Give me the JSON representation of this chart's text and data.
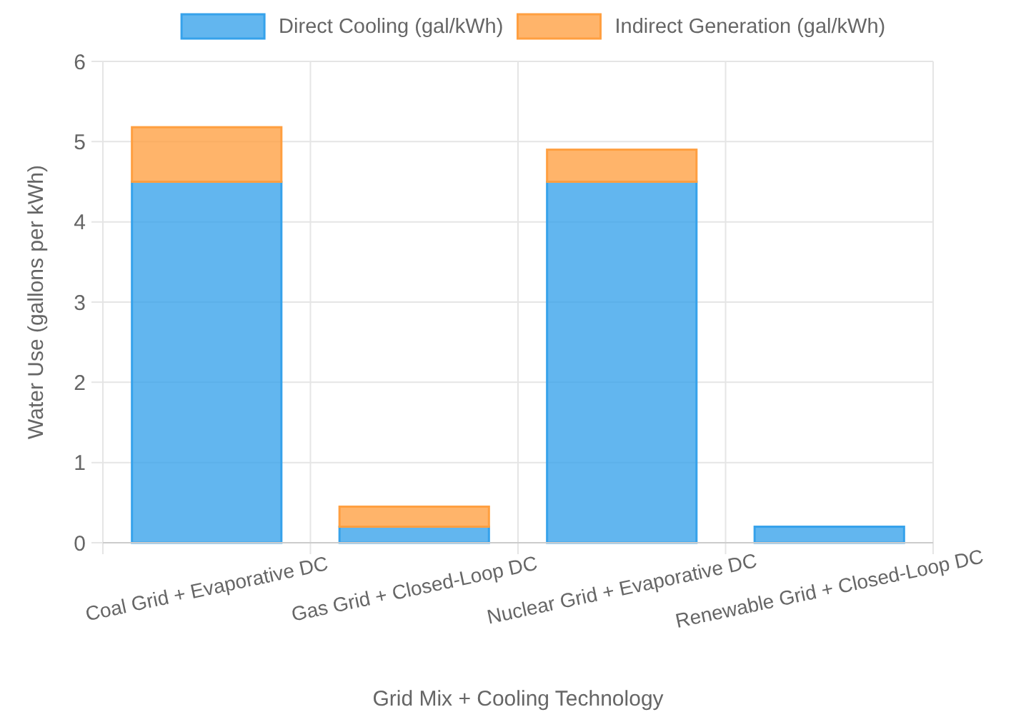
{
  "chart_data": {
    "type": "bar",
    "stacked": true,
    "xlabel": "Grid Mix + Cooling Technology",
    "ylabel": "Water Use (gallons per kWh)",
    "categories": [
      "Coal Grid + Evaporative DC",
      "Gas Grid + Closed-Loop DC",
      "Nuclear Grid + Evaporative DC",
      "Renewable Grid + Closed-Loop DC"
    ],
    "series": [
      {
        "name": "Direct Cooling (gal/kWh)",
        "color": "#36a2eb",
        "values": [
          4.5,
          0.2,
          4.5,
          0.2
        ]
      },
      {
        "name": "Indirect Generation (gal/kWh)",
        "color": "#ff9f40",
        "values": [
          0.68,
          0.25,
          0.4,
          0
        ]
      }
    ],
    "ylim": [
      0,
      6
    ],
    "yticks": [
      0,
      1,
      2,
      3,
      4,
      5,
      6
    ],
    "grid": true,
    "legend": "top"
  }
}
